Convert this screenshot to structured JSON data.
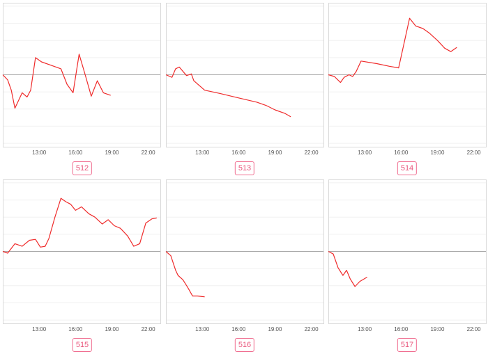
{
  "chart_data": [
    {
      "type": "line",
      "label": "512",
      "x_ticks": [
        "13:00",
        "16:00",
        "19:00",
        "22:00"
      ],
      "x_tick_hours": [
        13,
        16,
        19,
        22
      ],
      "xlim": [
        10,
        23
      ],
      "baseline": 0,
      "ylim": [
        -4.2,
        4.2
      ],
      "grid": true,
      "series": [
        {
          "x": [
            10.0,
            10.4,
            10.7,
            11.0,
            11.6,
            12.0,
            12.3,
            12.7,
            13.2,
            14.0,
            14.8,
            15.3,
            15.8,
            16.3,
            16.8,
            17.3,
            17.8,
            18.3,
            18.9
          ],
          "y": [
            0.0,
            -0.3,
            -0.9,
            -1.95,
            -1.05,
            -1.3,
            -0.9,
            1.0,
            0.75,
            0.55,
            0.35,
            -0.55,
            -1.05,
            1.2,
            0.0,
            -1.25,
            -0.35,
            -1.05,
            -1.2
          ]
        }
      ]
    },
    {
      "type": "line",
      "label": "513",
      "x_ticks": [
        "13:00",
        "16:00",
        "19:00",
        "22:00"
      ],
      "x_tick_hours": [
        13,
        16,
        19,
        22
      ],
      "xlim": [
        10,
        23
      ],
      "baseline": 0,
      "ylim": [
        -4.2,
        4.2
      ],
      "grid": true,
      "series": [
        {
          "x": [
            10.0,
            10.5,
            10.8,
            11.1,
            11.7,
            12.1,
            12.3,
            13.2,
            14.5,
            16.0,
            17.5,
            18.3,
            19.0,
            19.8,
            20.3
          ],
          "y": [
            0.0,
            -0.15,
            0.35,
            0.45,
            -0.05,
            0.05,
            -0.35,
            -0.9,
            -1.1,
            -1.35,
            -1.6,
            -1.8,
            -2.05,
            -2.25,
            -2.45
          ]
        }
      ]
    },
    {
      "type": "line",
      "label": "514",
      "x_ticks": [
        "13:00",
        "16:00",
        "19:00",
        "22:00"
      ],
      "x_tick_hours": [
        13,
        16,
        19,
        22
      ],
      "xlim": [
        10,
        23
      ],
      "baseline": 0,
      "ylim": [
        -4.2,
        4.2
      ],
      "grid": true,
      "series": [
        {
          "x": [
            10.0,
            10.5,
            11.0,
            11.3,
            11.7,
            12.0,
            12.3,
            12.7,
            14.0,
            15.0,
            15.8,
            16.7,
            17.2,
            17.8,
            18.3,
            19.0,
            19.6,
            20.1,
            20.6
          ],
          "y": [
            0.0,
            -0.1,
            -0.45,
            -0.15,
            0.0,
            -0.1,
            0.2,
            0.8,
            0.65,
            0.5,
            0.4,
            3.3,
            2.85,
            2.7,
            2.45,
            2.0,
            1.55,
            1.35,
            1.6
          ]
        }
      ]
    },
    {
      "type": "line",
      "label": "515",
      "x_ticks": [
        "13:00",
        "16:00",
        "19:00",
        "22:00"
      ],
      "x_tick_hours": [
        13,
        16,
        19,
        22
      ],
      "xlim": [
        10,
        23
      ],
      "baseline": 0,
      "ylim": [
        -4.2,
        4.2
      ],
      "grid": true,
      "series": [
        {
          "x": [
            10.0,
            10.4,
            11.0,
            11.6,
            12.2,
            12.7,
            13.1,
            13.5,
            13.8,
            14.3,
            14.8,
            15.2,
            15.6,
            16.0,
            16.5,
            17.1,
            17.6,
            18.2,
            18.7,
            19.2,
            19.7,
            20.3,
            20.8,
            21.3,
            21.8,
            22.3,
            22.7
          ],
          "y": [
            0.0,
            -0.1,
            0.45,
            0.3,
            0.65,
            0.7,
            0.25,
            0.3,
            0.75,
            2.0,
            3.1,
            2.9,
            2.75,
            2.4,
            2.6,
            2.2,
            2.0,
            1.6,
            1.85,
            1.5,
            1.35,
            0.9,
            0.3,
            0.45,
            1.65,
            1.9,
            1.95
          ]
        }
      ]
    },
    {
      "type": "line",
      "label": "516",
      "x_ticks": [
        "13:00",
        "16:00",
        "19:00",
        "22:00"
      ],
      "x_tick_hours": [
        13,
        16,
        19,
        22
      ],
      "xlim": [
        10,
        23
      ],
      "baseline": 0,
      "ylim": [
        -4.2,
        4.2
      ],
      "grid": true,
      "series": [
        {
          "x": [
            10.0,
            10.4,
            10.8,
            11.0,
            11.4,
            11.8,
            12.2,
            12.6,
            13.2
          ],
          "y": [
            0.0,
            -0.25,
            -1.1,
            -1.4,
            -1.65,
            -2.1,
            -2.6,
            -2.6,
            -2.65
          ]
        }
      ]
    },
    {
      "type": "line",
      "label": "517",
      "x_ticks": [
        "13:00",
        "16:00",
        "19:00",
        "22:00"
      ],
      "x_tick_hours": [
        13,
        16,
        19,
        22
      ],
      "xlim": [
        10,
        23
      ],
      "baseline": 0,
      "ylim": [
        -4.2,
        4.2
      ],
      "grid": true,
      "series": [
        {
          "x": [
            10.0,
            10.4,
            10.8,
            11.2,
            11.5,
            11.8,
            12.2,
            12.6,
            13.2
          ],
          "y": [
            0.0,
            -0.15,
            -0.95,
            -1.4,
            -1.1,
            -1.6,
            -2.05,
            -1.75,
            -1.5
          ]
        }
      ]
    }
  ],
  "colors": {
    "line": "#ef2b2b",
    "grid": "#f0f0f0",
    "frame": "#d9d9d9",
    "baseline": "#a8a8a8",
    "badge": "#e9557b"
  }
}
